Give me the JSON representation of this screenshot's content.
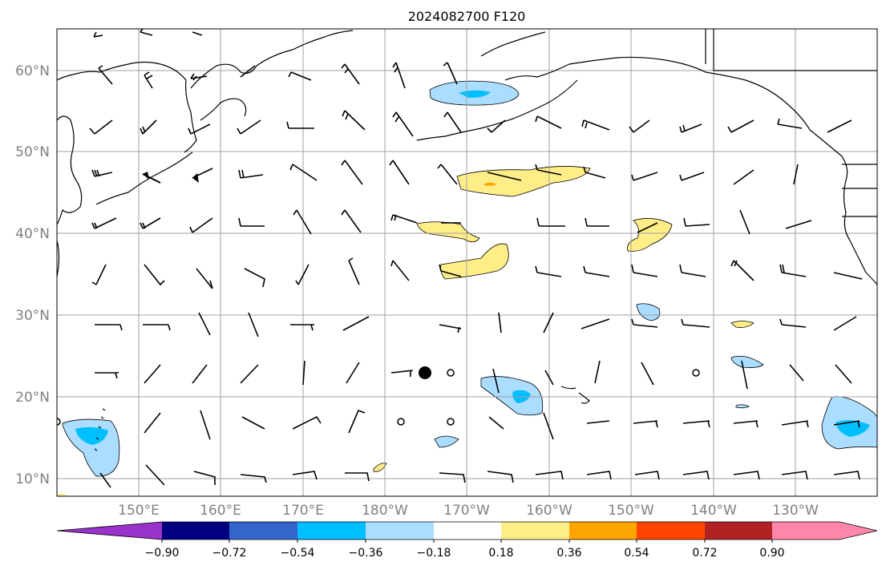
{
  "title": "2024082700 F120",
  "map": {
    "lat_labels": [
      "60°N",
      "50°N",
      "40°N",
      "30°N",
      "20°N",
      "10°N"
    ],
    "lon_labels": [
      "150°E",
      "160°E",
      "170°E",
      "180°W",
      "170°W",
      "160°W",
      "150°W",
      "140°W",
      "130°W"
    ]
  },
  "colorbar": {
    "colors": [
      "#9933cc",
      "#000080",
      "#3366cc",
      "#00bfff",
      "#aaddff",
      "#ffffff",
      "#ffee88",
      "#ffa500",
      "#ff4500",
      "#b22222",
      "#ff88aa"
    ],
    "tick_labels": [
      "−0.90",
      "−0.72",
      "−0.54",
      "−0.36",
      "−0.18",
      "0.18",
      "0.36",
      "0.54",
      "0.72",
      "0.90"
    ]
  }
}
